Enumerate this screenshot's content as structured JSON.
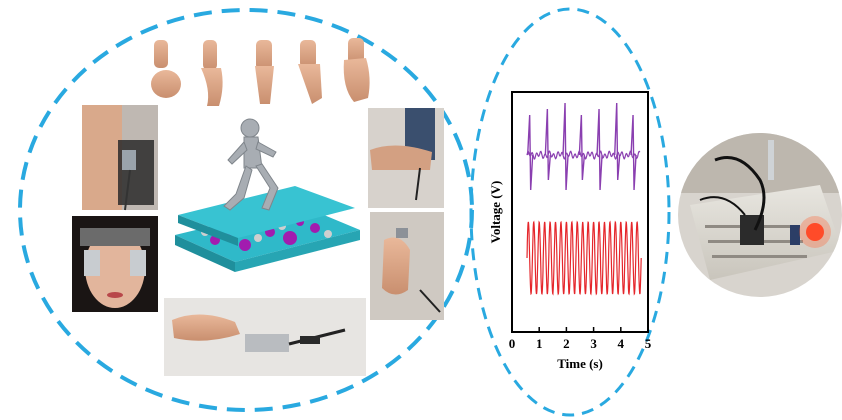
{
  "colors": {
    "dashed_outline": "#29a9e0",
    "trace_top": "#8a3fb0",
    "trace_bottom": "#e5262b",
    "teal_layer": "#2fb9c9",
    "led_red": "#ff3b1f"
  },
  "chart_data": {
    "type": "line",
    "xlabel": "Time (s)",
    "ylabel": "Voltage (V)",
    "xlim": [
      0,
      5
    ],
    "x_ticks": [
      "0",
      "1",
      "2",
      "3",
      "4",
      "5"
    ],
    "y_ticks_shown": false,
    "grid": false,
    "series": [
      {
        "color": "#8a3fb0",
        "pattern": "periodic spikes",
        "spike_times_s": [
          0.65,
          1.3,
          1.95,
          2.55,
          3.2,
          3.85,
          4.45
        ]
      },
      {
        "color": "#e5262b",
        "pattern": "continuous oscillation",
        "cycles": 21,
        "x_range_s": [
          0.55,
          4.75
        ]
      }
    ]
  },
  "icons": {
    "hand_gestures": [
      "fist-hand-icon",
      "bent-finger-hand-icon",
      "pointing-hand-icon",
      "pointing-down-hand-icon",
      "open-hand-icon"
    ]
  }
}
